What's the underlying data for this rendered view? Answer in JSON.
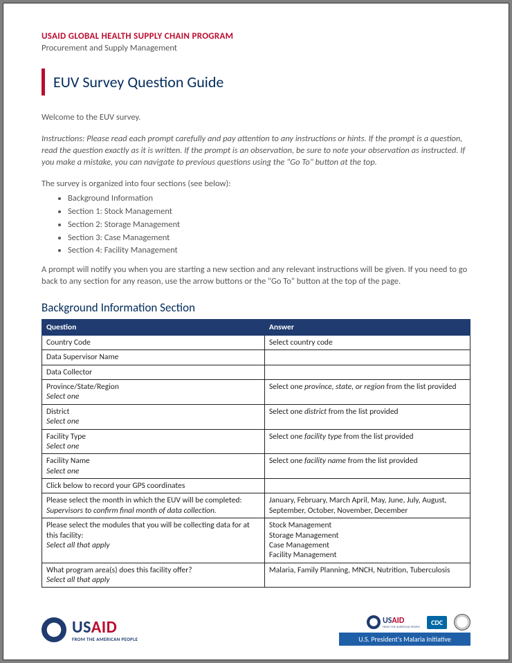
{
  "header": {
    "org": "USAID GLOBAL HEALTH SUPPLY CHAIN PROGRAM",
    "sub": "Procurement and Supply Management"
  },
  "title": "EUV Survey Question Guide",
  "welcome": "Welcome to the EUV survey.",
  "instructions": "Instructions: Please read each prompt carefully and pay attention to any instructions or hints. If the prompt is a question, read the question exactly as it is written. If the prompt is an observation, be sure to note your observation as instructed. If you make a mistake, you can navigate to previous questions using the \"Go To\" button at the top.",
  "sections_intro": "The survey is organized into four sections (see below):",
  "sections": [
    "Background Information",
    "Section 1: Stock Management",
    "Section 2: Storage Management",
    "Section 3: Case Management",
    "Section 4: Facility Management"
  ],
  "prompt_note": "A prompt will notify you when you are starting a new section and any relevant instructions will be given. If you need to go back to any section for any reason, use the arrow buttons or the \"Go To\" button at the top of the page.",
  "section_title": "Background Information Section",
  "table": {
    "headers": [
      "Question",
      "Answer"
    ],
    "col_widths": [
      "52%",
      "48%"
    ],
    "header_bg": "#1f3b6f",
    "header_color": "#ffffff",
    "border_color": "#222222",
    "rows": [
      {
        "q": "Country Code",
        "a": "Select country code"
      },
      {
        "q": "Data Supervisor Name",
        "a": ""
      },
      {
        "q": "Data Collector",
        "a": ""
      },
      {
        "q": "Province/State/Region",
        "hint": "Select one",
        "a_pre": "Select one ",
        "a_em": "province, state, or region",
        "a_post": " from the list provided"
      },
      {
        "q": "District",
        "hint": "Select one",
        "a_pre": "Select one ",
        "a_em": "district",
        "a_post": " from the list provided"
      },
      {
        "q": "Facility Type",
        "hint": "Select one",
        "a_pre": "Select one ",
        "a_em": "facility type",
        "a_post": " from the list provided"
      },
      {
        "q": "Facility Name",
        "hint": "Select one",
        "a_pre": "Select one ",
        "a_em": "facility name",
        "a_post": " from the list provided"
      },
      {
        "q": "Click below to record your GPS coordinates",
        "a": ""
      },
      {
        "q": "Please select the month in which the EUV will be completed:",
        "hint": "Supervisors to confirm final month of data collection.",
        "a": "January, February, March April, May, June, July, August, September, October, November, December"
      },
      {
        "q": "Please select the modules that you will be collecting data for at this facility:",
        "hint": "Select all that apply",
        "a_lines": [
          "Stock Management",
          "Storage Management",
          "Case Management",
          "Facility Management"
        ]
      },
      {
        "q": "What program area(s) does this facility offer?",
        "hint": "Select all that apply",
        "a": "Malaria, Family Planning, MNCH, Nutrition, Tuberculosis"
      }
    ]
  },
  "footer": {
    "usaid_tag": "FROM THE AMERICAN PEOPLE",
    "cdc": "CDC",
    "pmi": "U.S. President's Malaria Initiative"
  },
  "colors": {
    "brand_red": "#ba0c2f",
    "brand_navy": "#002b5c",
    "table_header": "#1f3b6f",
    "text_gray": "#555555",
    "pmi_blue": "#1f5fa8",
    "cdc_blue": "#0067a5"
  }
}
